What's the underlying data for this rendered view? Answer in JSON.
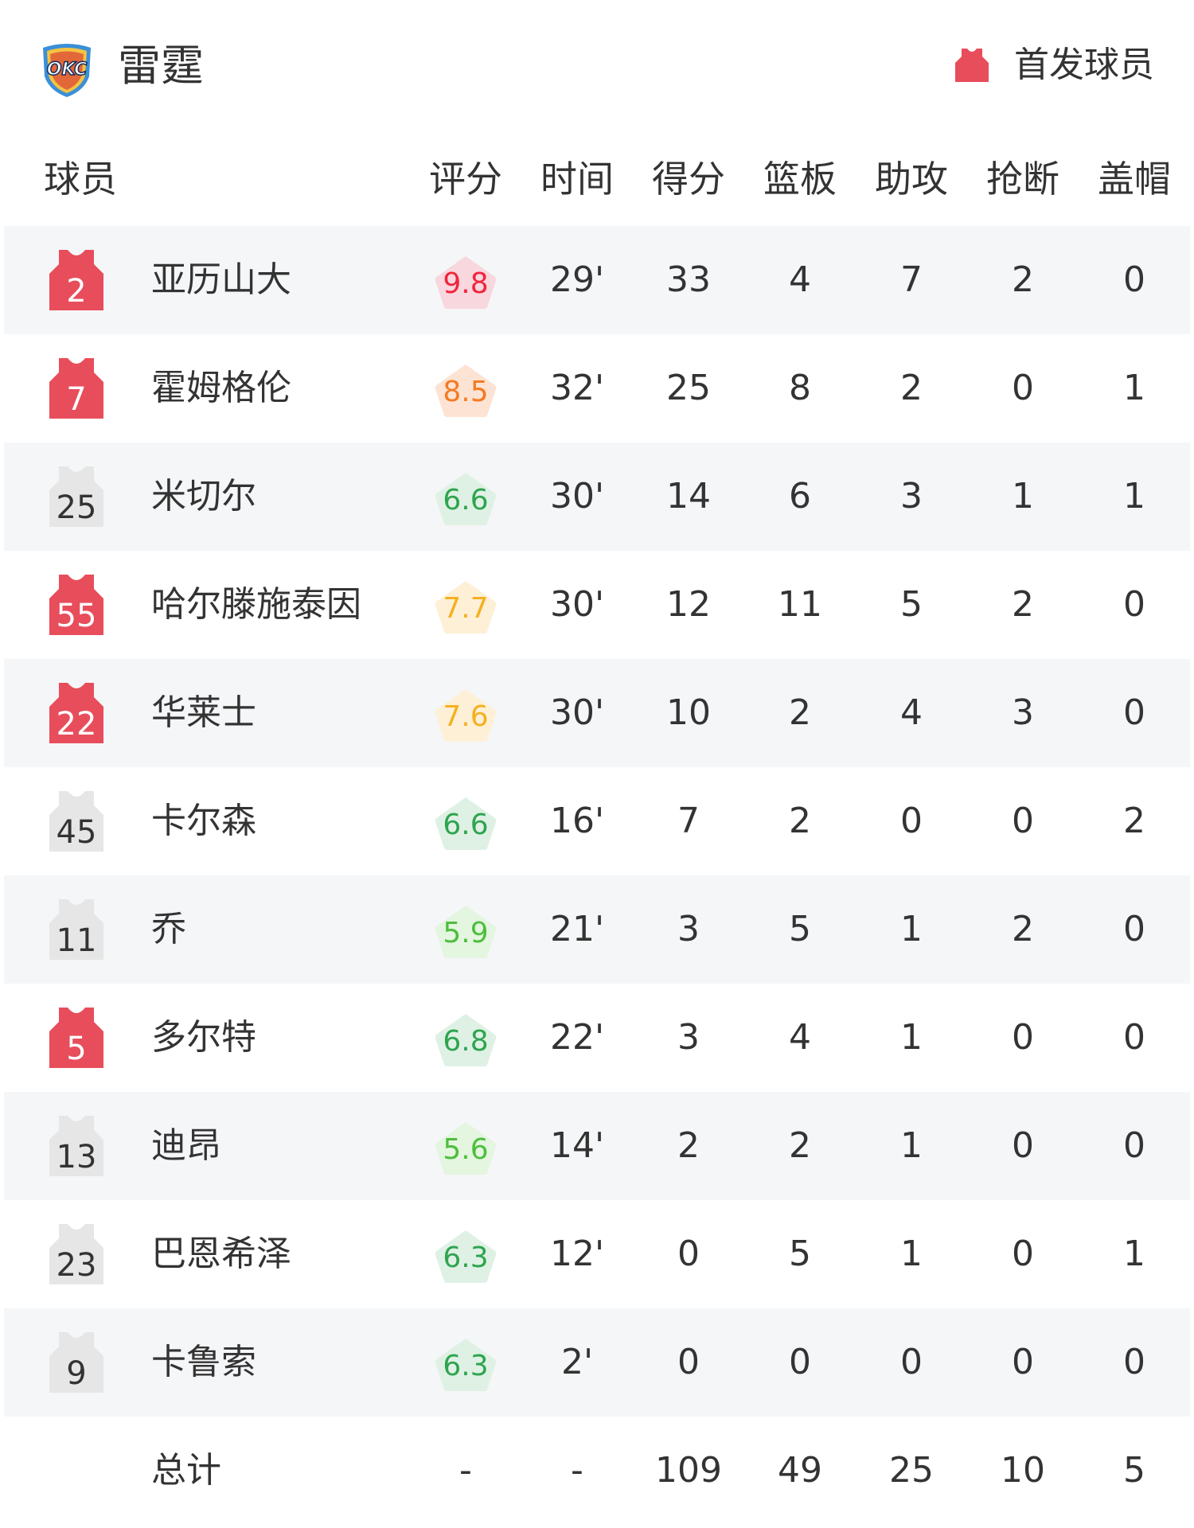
{
  "team": {
    "name": "雷霆",
    "logo_text": "OKC",
    "logo_icon": "okc-shield-logo"
  },
  "legend": {
    "label": "首发球员",
    "icon": "jersey-icon",
    "color": "#e84d5b"
  },
  "columns": [
    "球员",
    "评分",
    "时间",
    "得分",
    "篮板",
    "助攻",
    "抢断",
    "盖帽"
  ],
  "colors": {
    "starter": "#e84d5b",
    "bench": "#e6e6e6",
    "row_shade": "#f5f6f8"
  },
  "players": [
    {
      "number": "2",
      "starter": true,
      "name": "亚历山大",
      "rating": "9.8",
      "tier": "red",
      "min": "29'",
      "pts": "33",
      "reb": "4",
      "ast": "7",
      "stl": "2",
      "blk": "0"
    },
    {
      "number": "7",
      "starter": true,
      "name": "霍姆格伦",
      "rating": "8.5",
      "tier": "orange",
      "min": "32'",
      "pts": "25",
      "reb": "8",
      "ast": "2",
      "stl": "0",
      "blk": "1"
    },
    {
      "number": "25",
      "starter": false,
      "name": "米切尔",
      "rating": "6.6",
      "tier": "green",
      "min": "30'",
      "pts": "14",
      "reb": "6",
      "ast": "3",
      "stl": "1",
      "blk": "1"
    },
    {
      "number": "55",
      "starter": true,
      "name": "哈尔滕施泰因",
      "rating": "7.7",
      "tier": "yellow",
      "min": "30'",
      "pts": "12",
      "reb": "11",
      "ast": "5",
      "stl": "2",
      "blk": "0"
    },
    {
      "number": "22",
      "starter": true,
      "name": "华莱士",
      "rating": "7.6",
      "tier": "yellow",
      "min": "30'",
      "pts": "10",
      "reb": "2",
      "ast": "4",
      "stl": "3",
      "blk": "0"
    },
    {
      "number": "45",
      "starter": false,
      "name": "卡尔森",
      "rating": "6.6",
      "tier": "green",
      "min": "16'",
      "pts": "7",
      "reb": "2",
      "ast": "0",
      "stl": "0",
      "blk": "2"
    },
    {
      "number": "11",
      "starter": false,
      "name": "乔",
      "rating": "5.9",
      "tier": "lightgreen",
      "min": "21'",
      "pts": "3",
      "reb": "5",
      "ast": "1",
      "stl": "2",
      "blk": "0"
    },
    {
      "number": "5",
      "starter": true,
      "name": "多尔特",
      "rating": "6.8",
      "tier": "green",
      "min": "22'",
      "pts": "3",
      "reb": "4",
      "ast": "1",
      "stl": "0",
      "blk": "0"
    },
    {
      "number": "13",
      "starter": false,
      "name": "迪昂",
      "rating": "5.6",
      "tier": "lightgreen",
      "min": "14'",
      "pts": "2",
      "reb": "2",
      "ast": "1",
      "stl": "0",
      "blk": "0"
    },
    {
      "number": "23",
      "starter": false,
      "name": "巴恩希泽",
      "rating": "6.3",
      "tier": "green",
      "min": "12'",
      "pts": "0",
      "reb": "5",
      "ast": "1",
      "stl": "0",
      "blk": "1"
    },
    {
      "number": "9",
      "starter": false,
      "name": "卡鲁索",
      "rating": "6.3",
      "tier": "green",
      "min": "2'",
      "pts": "0",
      "reb": "0",
      "ast": "0",
      "stl": "0",
      "blk": "0"
    }
  ],
  "totals": {
    "label": "总计",
    "rating": "-",
    "min": "-",
    "pts": "109",
    "reb": "49",
    "ast": "25",
    "stl": "10",
    "blk": "5"
  },
  "rating_colors": {
    "red": {
      "bg": "#f8d7de",
      "fg": "#f0243c"
    },
    "orange": {
      "bg": "#fde3d3",
      "fg": "#f47a22"
    },
    "yellow": {
      "bg": "#fdf0d6",
      "fg": "#f5b021"
    },
    "green": {
      "bg": "#dff1e4",
      "fg": "#2ea44f"
    },
    "lightgreen": {
      "bg": "#e4f5e0",
      "fg": "#4cbf3c"
    }
  }
}
